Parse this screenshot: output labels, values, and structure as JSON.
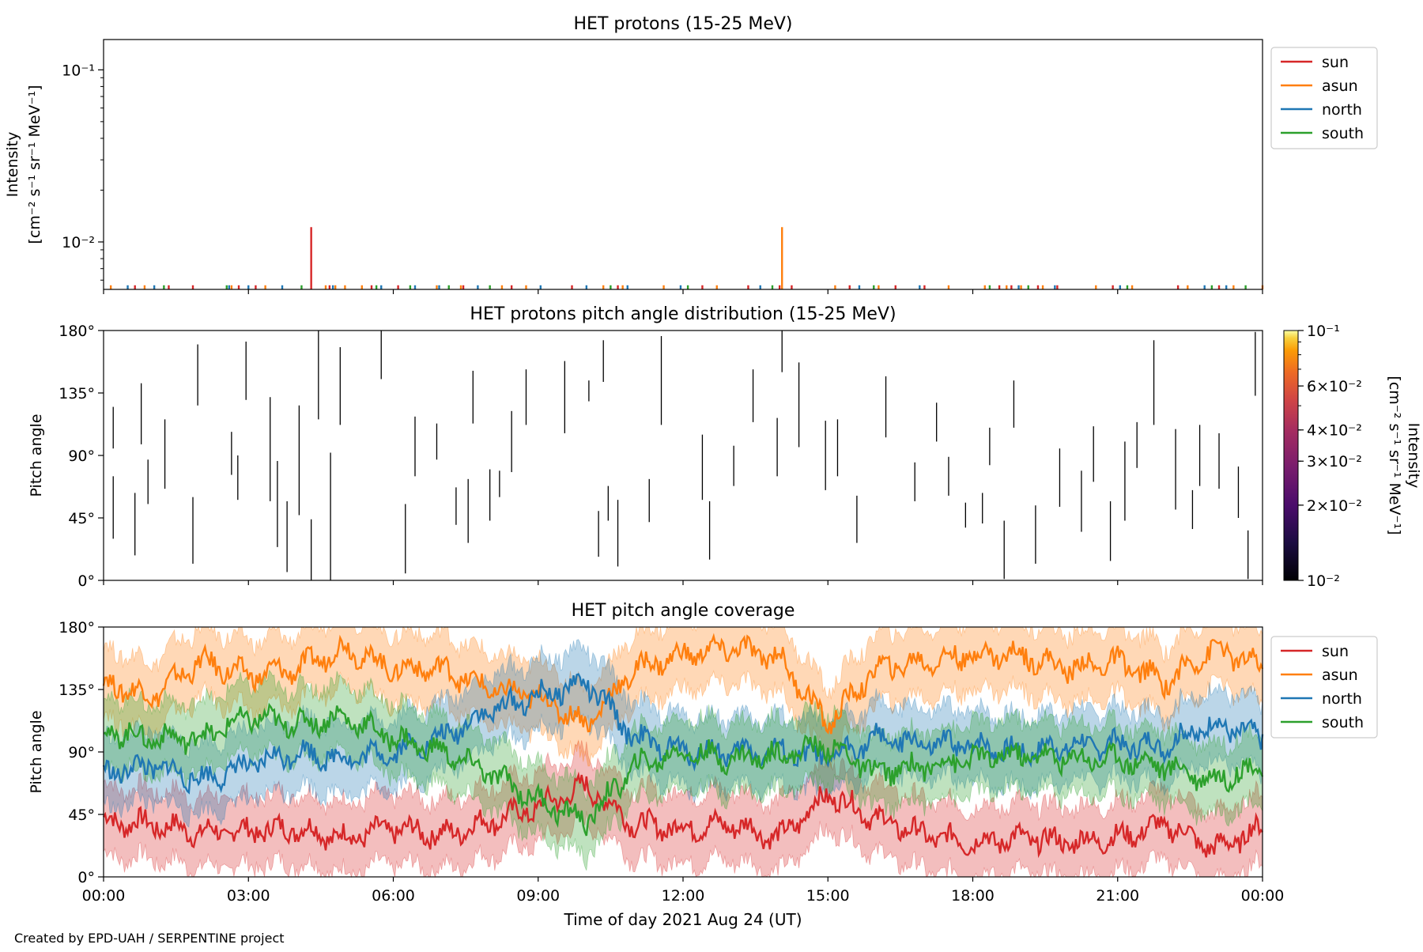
{
  "footer": {
    "credit": "Created by EPD-UAH / SERPENTINE project"
  },
  "colors": {
    "sun": "#d62728",
    "asun": "#ff7f0e",
    "north": "#1f77b4",
    "south": "#2ca02c"
  },
  "chart_data": [
    {
      "id": "intensity",
      "type": "line",
      "title": "HET protons (15-25 MeV)",
      "ylabel": "Intensity",
      "ylabel_unit": "[cm⁻² s⁻¹ sr⁻¹ MeV⁻¹]",
      "yscale": "log",
      "ylim": [
        0.0053,
        0.15
      ],
      "yticks": [
        0.01,
        0.1
      ],
      "ytick_labels": [
        "10⁻²",
        "10⁻¹"
      ],
      "xlim": [
        0,
        24
      ],
      "legend": {
        "placement": "outside-right-top",
        "entries": [
          "sun",
          "asun",
          "north",
          "south"
        ]
      },
      "baseline": 0.0056,
      "series": [
        {
          "name": "sun",
          "color": "#d62728",
          "x": [
            0.65,
            1.35,
            1.85,
            2.8,
            3.15,
            4.3,
            4.68,
            5.55,
            6.1,
            7.45,
            8.45,
            9.7,
            10.65,
            12.4,
            13.35,
            14.0,
            14.25,
            15.45,
            16.4,
            17.0,
            18.55,
            18.8,
            19.35,
            19.75,
            20.9,
            22.25,
            23.1
          ],
          "y": [
            0.0056,
            0.0056,
            0.0056,
            0.0056,
            0.0056,
            0.0122,
            0.0056,
            0.0056,
            0.0056,
            0.0056,
            0.0056,
            0.0056,
            0.0056,
            0.0056,
            0.0056,
            0.0056,
            0.0056,
            0.0056,
            0.0056,
            0.0056,
            0.0056,
            0.0056,
            0.0056,
            0.0056,
            0.0056,
            0.0056,
            0.0056
          ]
        },
        {
          "name": "asun",
          "color": "#ff7f0e",
          "x": [
            0.15,
            0.85,
            2.65,
            3.35,
            4.6,
            4.8,
            5.0,
            5.35,
            6.9,
            7.4,
            8.25,
            8.75,
            10.35,
            10.75,
            11.6,
            12.7,
            14.05,
            15.15,
            16.05,
            17.5,
            18.25,
            18.7,
            19.0,
            19.45,
            20.55,
            21.3,
            22.45,
            23.4,
            24.0
          ],
          "y": [
            0.0056,
            0.0056,
            0.0056,
            0.0056,
            0.0056,
            0.0056,
            0.0056,
            0.0056,
            0.0056,
            0.0056,
            0.0056,
            0.0056,
            0.0056,
            0.0056,
            0.0056,
            0.0056,
            0.0122,
            0.0056,
            0.0056,
            0.0056,
            0.0056,
            0.0056,
            0.0056,
            0.0056,
            0.0056,
            0.0056,
            0.0056,
            0.0056,
            0.0056
          ]
        },
        {
          "name": "north",
          "color": "#1f77b4",
          "x": [
            0.5,
            1.05,
            2.6,
            3.0,
            3.7,
            4.75,
            5.75,
            6.45,
            6.95,
            7.75,
            9.05,
            10.0,
            10.85,
            11.95,
            13.6,
            15.65,
            16.9,
            18.95,
            19.7,
            21.05,
            22.8,
            23.25
          ],
          "y": [
            0.0056,
            0.0056,
            0.0056,
            0.0056,
            0.0056,
            0.0056,
            0.0056,
            0.0056,
            0.0056,
            0.0056,
            0.0056,
            0.0056,
            0.0056,
            0.0056,
            0.0056,
            0.0056,
            0.0056,
            0.0056,
            0.0056,
            0.0056,
            0.0056,
            0.0056
          ]
        },
        {
          "name": "south",
          "color": "#2ca02c",
          "x": [
            1.25,
            2.55,
            4.1,
            5.65,
            6.35,
            7.15,
            8.0,
            10.5,
            12.1,
            13.85,
            15.95,
            18.35,
            19.15,
            21.2,
            22.95,
            23.65
          ],
          "y": [
            0.0056,
            0.0056,
            0.0056,
            0.0056,
            0.0056,
            0.0056,
            0.0056,
            0.0056,
            0.0056,
            0.0056,
            0.0056,
            0.0056,
            0.0056,
            0.0056,
            0.0056,
            0.0056
          ]
        }
      ]
    },
    {
      "id": "pad",
      "type": "heatmap",
      "title": "HET protons pitch angle distribution (15-25 MeV)",
      "ylabel": "Pitch angle",
      "ylim": [
        0,
        180
      ],
      "yticks": [
        0,
        45,
        90,
        135,
        180
      ],
      "ytick_labels": [
        "0°",
        "45°",
        "90°",
        "135°",
        "180°"
      ],
      "xlim": [
        0,
        24
      ],
      "colorbar": {
        "label": "Intensity",
        "unit": "[cm⁻² s⁻¹ sr⁻¹ MeV⁻¹]",
        "scale": "log",
        "range": [
          0.01,
          0.1
        ],
        "ticks": [
          0.01,
          0.02,
          0.03,
          0.04,
          0.06,
          0.1
        ],
        "tick_labels": [
          "10⁻²",
          "2×10⁻²",
          "3×10⁻²",
          "4×10⁻²",
          "6×10⁻²",
          "10⁻¹"
        ]
      },
      "marks": [
        [
          0.2,
          30,
          75
        ],
        [
          0.2,
          95,
          125
        ],
        [
          0.65,
          18,
          63
        ],
        [
          0.78,
          98,
          142
        ],
        [
          0.92,
          55,
          87
        ],
        [
          1.27,
          66,
          116
        ],
        [
          1.85,
          12,
          60
        ],
        [
          1.95,
          126,
          170
        ],
        [
          2.65,
          76,
          107
        ],
        [
          2.78,
          58,
          90
        ],
        [
          2.95,
          130,
          172
        ],
        [
          3.45,
          57,
          132
        ],
        [
          3.6,
          24,
          86
        ],
        [
          3.8,
          6,
          57
        ],
        [
          4.05,
          47,
          126
        ],
        [
          4.3,
          0,
          44
        ],
        [
          4.45,
          116,
          180
        ],
        [
          4.7,
          0,
          92
        ],
        [
          4.9,
          112,
          168
        ],
        [
          5.75,
          145,
          180
        ],
        [
          6.25,
          5,
          55
        ],
        [
          6.45,
          75,
          118
        ],
        [
          6.9,
          87,
          113
        ],
        [
          7.3,
          40,
          67
        ],
        [
          7.55,
          27,
          73
        ],
        [
          7.65,
          113,
          151
        ],
        [
          8.0,
          43,
          80
        ],
        [
          8.2,
          60,
          79
        ],
        [
          8.45,
          78,
          122
        ],
        [
          8.75,
          112,
          152
        ],
        [
          9.55,
          106,
          158
        ],
        [
          10.05,
          129,
          144
        ],
        [
          10.25,
          17,
          50
        ],
        [
          10.35,
          143,
          173
        ],
        [
          10.45,
          43,
          68
        ],
        [
          10.65,
          10,
          58
        ],
        [
          11.3,
          42,
          73
        ],
        [
          11.55,
          112,
          176
        ],
        [
          12.4,
          58,
          105
        ],
        [
          12.55,
          15,
          57
        ],
        [
          13.05,
          68,
          97
        ],
        [
          13.45,
          114,
          152
        ],
        [
          13.95,
          75,
          117
        ],
        [
          14.05,
          150,
          180
        ],
        [
          14.4,
          96,
          157
        ],
        [
          14.95,
          65,
          115
        ],
        [
          15.2,
          75,
          116
        ],
        [
          15.6,
          27,
          61
        ],
        [
          16.2,
          103,
          147
        ],
        [
          16.8,
          57,
          85
        ],
        [
          17.25,
          100,
          128
        ],
        [
          17.5,
          61,
          89
        ],
        [
          17.85,
          38,
          56
        ],
        [
          18.2,
          41,
          63
        ],
        [
          18.35,
          83,
          110
        ],
        [
          18.65,
          1,
          43
        ],
        [
          18.85,
          110,
          144
        ],
        [
          19.3,
          12,
          54
        ],
        [
          19.8,
          53,
          95
        ],
        [
          20.25,
          35,
          79
        ],
        [
          20.5,
          71,
          111
        ],
        [
          20.85,
          14,
          57
        ],
        [
          21.15,
          43,
          100
        ],
        [
          21.4,
          81,
          114
        ],
        [
          21.75,
          112,
          173
        ],
        [
          22.2,
          51,
          109
        ],
        [
          22.55,
          37,
          65
        ],
        [
          22.7,
          68,
          112
        ],
        [
          23.1,
          66,
          106
        ],
        [
          23.5,
          45,
          82
        ],
        [
          23.7,
          1,
          36
        ],
        [
          23.85,
          133,
          179
        ]
      ]
    },
    {
      "id": "coverage",
      "type": "area",
      "title": "HET pitch angle coverage",
      "ylabel": "Pitch angle",
      "xlabel": "Time of day 2021 Aug 24 (UT)",
      "ylim": [
        0,
        180
      ],
      "yticks": [
        0,
        45,
        90,
        135,
        180
      ],
      "ytick_labels": [
        "0°",
        "45°",
        "90°",
        "135°",
        "180°"
      ],
      "xlim": [
        0,
        24
      ],
      "xticks": [
        0,
        3,
        6,
        9,
        12,
        15,
        18,
        21,
        24
      ],
      "xtick_labels": [
        "00:00",
        "03:00",
        "06:00",
        "09:00",
        "12:00",
        "15:00",
        "18:00",
        "21:00",
        "00:00"
      ],
      "legend": {
        "placement": "outside-right-top",
        "entries": [
          "sun",
          "asun",
          "north",
          "south"
        ]
      },
      "band_halfwidth": 25,
      "x": [
        0,
        1,
        2,
        3,
        4,
        5,
        6,
        7,
        8,
        9,
        10,
        11,
        12,
        13,
        14,
        15,
        16,
        17,
        18,
        19,
        20,
        21,
        22,
        23,
        24
      ],
      "series": [
        {
          "name": "sun",
          "color": "#d62728",
          "values": [
            40,
            38,
            32,
            33,
            35,
            28,
            35,
            30,
            40,
            50,
            65,
            38,
            35,
            38,
            28,
            60,
            42,
            30,
            25,
            28,
            25,
            28,
            38,
            20,
            35
          ]
        },
        {
          "name": "asun",
          "color": "#ff7f0e",
          "values": [
            140,
            130,
            155,
            145,
            150,
            165,
            150,
            150,
            135,
            130,
            110,
            150,
            160,
            165,
            158,
            110,
            150,
            155,
            160,
            160,
            150,
            155,
            140,
            165,
            150
          ]
        },
        {
          "name": "north",
          "color": "#1f77b4",
          "values": [
            75,
            80,
            70,
            80,
            90,
            85,
            90,
            100,
            120,
            130,
            140,
            100,
            90,
            90,
            90,
            85,
            100,
            95,
            95,
            90,
            95,
            95,
            95,
            110,
            100
          ]
        },
        {
          "name": "south",
          "color": "#2ca02c",
          "values": [
            105,
            100,
            100,
            115,
            110,
            115,
            100,
            90,
            75,
            55,
            40,
            80,
            90,
            85,
            88,
            95,
            75,
            80,
            85,
            88,
            85,
            85,
            80,
            70,
            80
          ]
        }
      ]
    }
  ]
}
